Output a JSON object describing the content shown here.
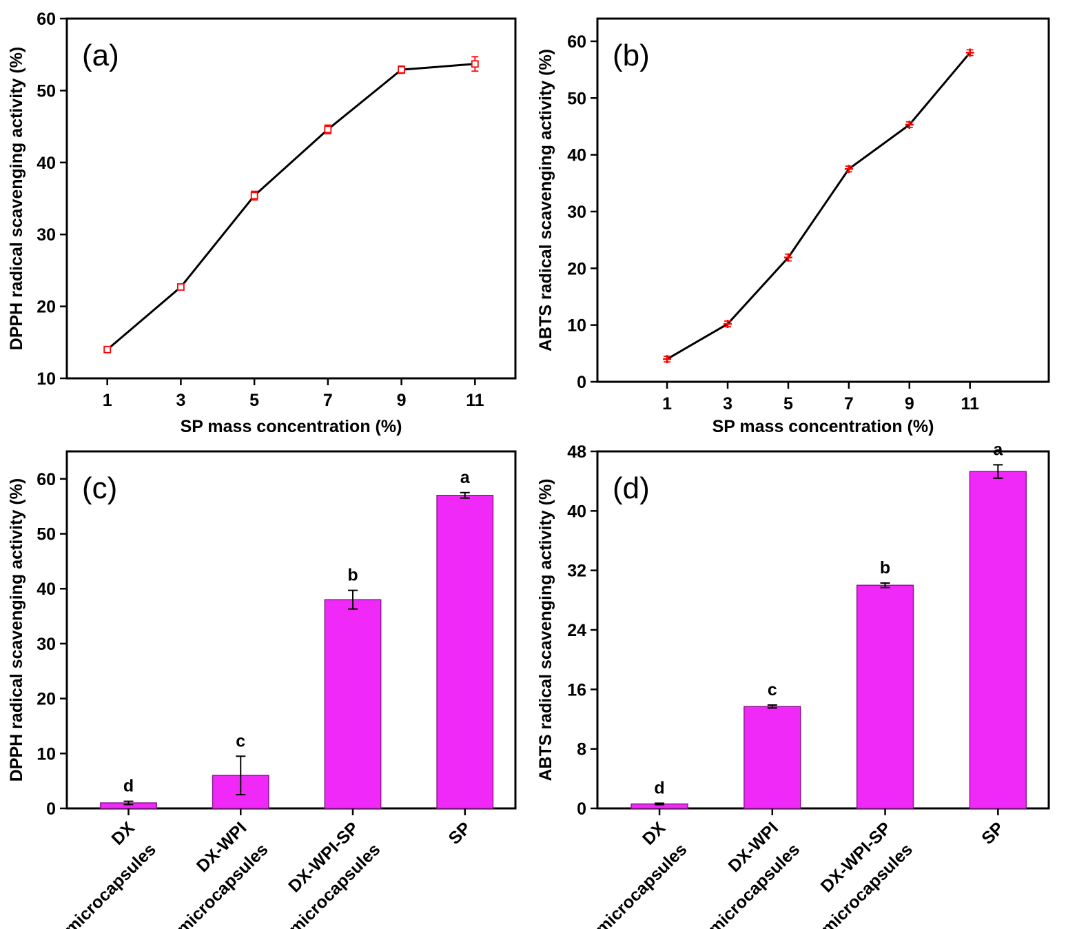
{
  "chart_data": [
    {
      "type": "line",
      "panel_label": "(a)",
      "xlabel": "SP mass concentration (%)",
      "ylabel": "DPPH radical scavenging activity (%)",
      "x": [
        1,
        3,
        5,
        7,
        9,
        11
      ],
      "y": [
        14.0,
        22.7,
        35.4,
        44.6,
        52.9,
        53.7
      ],
      "error": [
        0.4,
        0.4,
        0.6,
        0.6,
        0.5,
        1.0
      ],
      "xticks": [
        1,
        3,
        5,
        7,
        9,
        11
      ],
      "yticks": [
        10,
        20,
        30,
        40,
        50,
        60
      ],
      "xlim": [
        -0.1,
        12.1
      ],
      "ylim": [
        10,
        60
      ],
      "marker": "open-square",
      "line_color": "#000000",
      "marker_color": "#ff0000"
    },
    {
      "type": "line",
      "panel_label": "(b)",
      "xlabel": "SP mass concentration (%)",
      "ylabel": "ABTS radical scavenging activity (%)",
      "x": [
        1,
        3,
        5,
        7,
        9,
        11
      ],
      "y": [
        4.0,
        10.2,
        21.9,
        37.5,
        45.3,
        58.0
      ],
      "error": [
        0.5,
        0.5,
        0.6,
        0.5,
        0.5,
        0.5
      ],
      "xticks": [
        1,
        3,
        5,
        7,
        9,
        11
      ],
      "yticks": [
        0,
        10,
        20,
        30,
        40,
        50,
        60
      ],
      "xlim": [
        -1.3,
        13.6
      ],
      "ylim": [
        0,
        64
      ],
      "marker": "plus",
      "line_color": "#000000",
      "marker_color": "#ff0000"
    },
    {
      "type": "bar",
      "panel_label": "(c)",
      "xlabel": "",
      "ylabel": "DPPH radical scavenging activity (%)",
      "categories": [
        [
          "DX",
          "microcapsules"
        ],
        [
          "DX-WPI",
          "microcapsules"
        ],
        [
          "DX-WPI-SP",
          "microcapsules"
        ],
        [
          "SP"
        ]
      ],
      "values": [
        1.0,
        6.0,
        38.0,
        57.0
      ],
      "error": [
        0.3,
        3.5,
        1.7,
        0.5
      ],
      "significance": [
        "d",
        "c",
        "b",
        "a"
      ],
      "yticks": [
        0,
        10,
        20,
        30,
        40,
        50,
        60
      ],
      "ylim": [
        0,
        65
      ],
      "bar_color": "#f029f8",
      "bar_edge": "#8a1a8f"
    },
    {
      "type": "bar",
      "panel_label": "(d)",
      "xlabel": "",
      "ylabel": "ABTS radical scavenging activity (%)",
      "categories": [
        [
          "DX",
          "microcapsules"
        ],
        [
          "DX-WPI",
          "microcapsules"
        ],
        [
          "DX-WPI-SP",
          "microcapsules"
        ],
        [
          "SP"
        ]
      ],
      "values": [
        0.6,
        13.7,
        30.0,
        45.3
      ],
      "error": [
        0.1,
        0.2,
        0.3,
        0.9
      ],
      "significance": [
        "d",
        "c",
        "b",
        "a"
      ],
      "yticks": [
        0,
        8,
        16,
        24,
        32,
        40,
        48
      ],
      "ylim": [
        0,
        48
      ],
      "bar_color": "#f029f8",
      "bar_edge": "#8a1a8f"
    }
  ]
}
